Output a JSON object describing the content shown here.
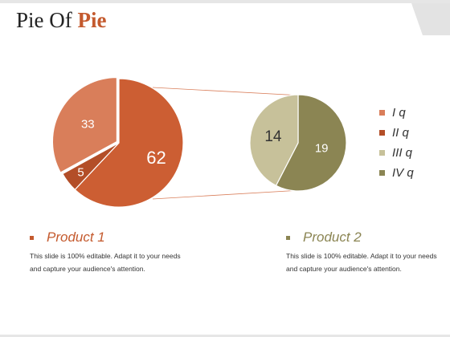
{
  "slide": {
    "title_main": "Pie Of",
    "title_accent": "Pie"
  },
  "colors": {
    "accent": "#c45a2e",
    "olive": "#8b8553",
    "products_desc": "#333333"
  },
  "chart_data": [
    {
      "type": "pie",
      "values": [
        62,
        5,
        33
      ],
      "labels": [
        "62",
        "5",
        "33"
      ],
      "colors": [
        "#cc5e33",
        "#b34e28",
        "#d97e5a"
      ],
      "note": "slice 33 is exploded into secondary pie"
    },
    {
      "type": "pie",
      "values": [
        19,
        14
      ],
      "labels": [
        "19",
        "14"
      ],
      "colors": [
        "#8b8553",
        "#c7c19a"
      ]
    }
  ],
  "legend": [
    {
      "label": "I q",
      "color": "#d97e5a"
    },
    {
      "label": "II q",
      "color": "#b34e28"
    },
    {
      "label": "III q",
      "color": "#c7c19a"
    },
    {
      "label": "IV q",
      "color": "#8b8553"
    }
  ],
  "products": [
    {
      "title": "Product 1",
      "color": "#c45a2e",
      "desc": "This slide is 100% editable. Adapt it to your needs and capture your audience's attention."
    },
    {
      "title": "Product 2",
      "color": "#8b8553",
      "desc": "This slide is 100% editable. Adapt it to your needs and capture your audience's attention."
    }
  ]
}
